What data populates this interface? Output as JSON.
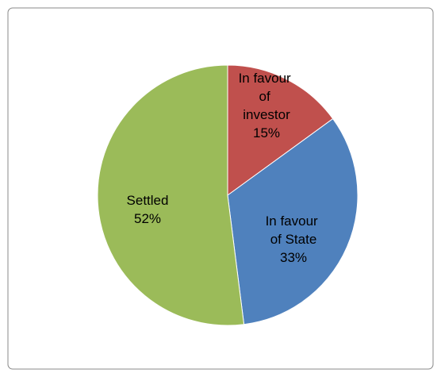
{
  "chart_data": {
    "type": "pie",
    "categories": [
      "In favour of investor",
      "In favour of State",
      "Settled"
    ],
    "values": [
      15,
      33,
      52
    ],
    "value_labels": [
      "15%",
      "33%",
      "52%"
    ],
    "colors": [
      "#c0504d",
      "#4f81bd",
      "#9bbb59"
    ]
  }
}
